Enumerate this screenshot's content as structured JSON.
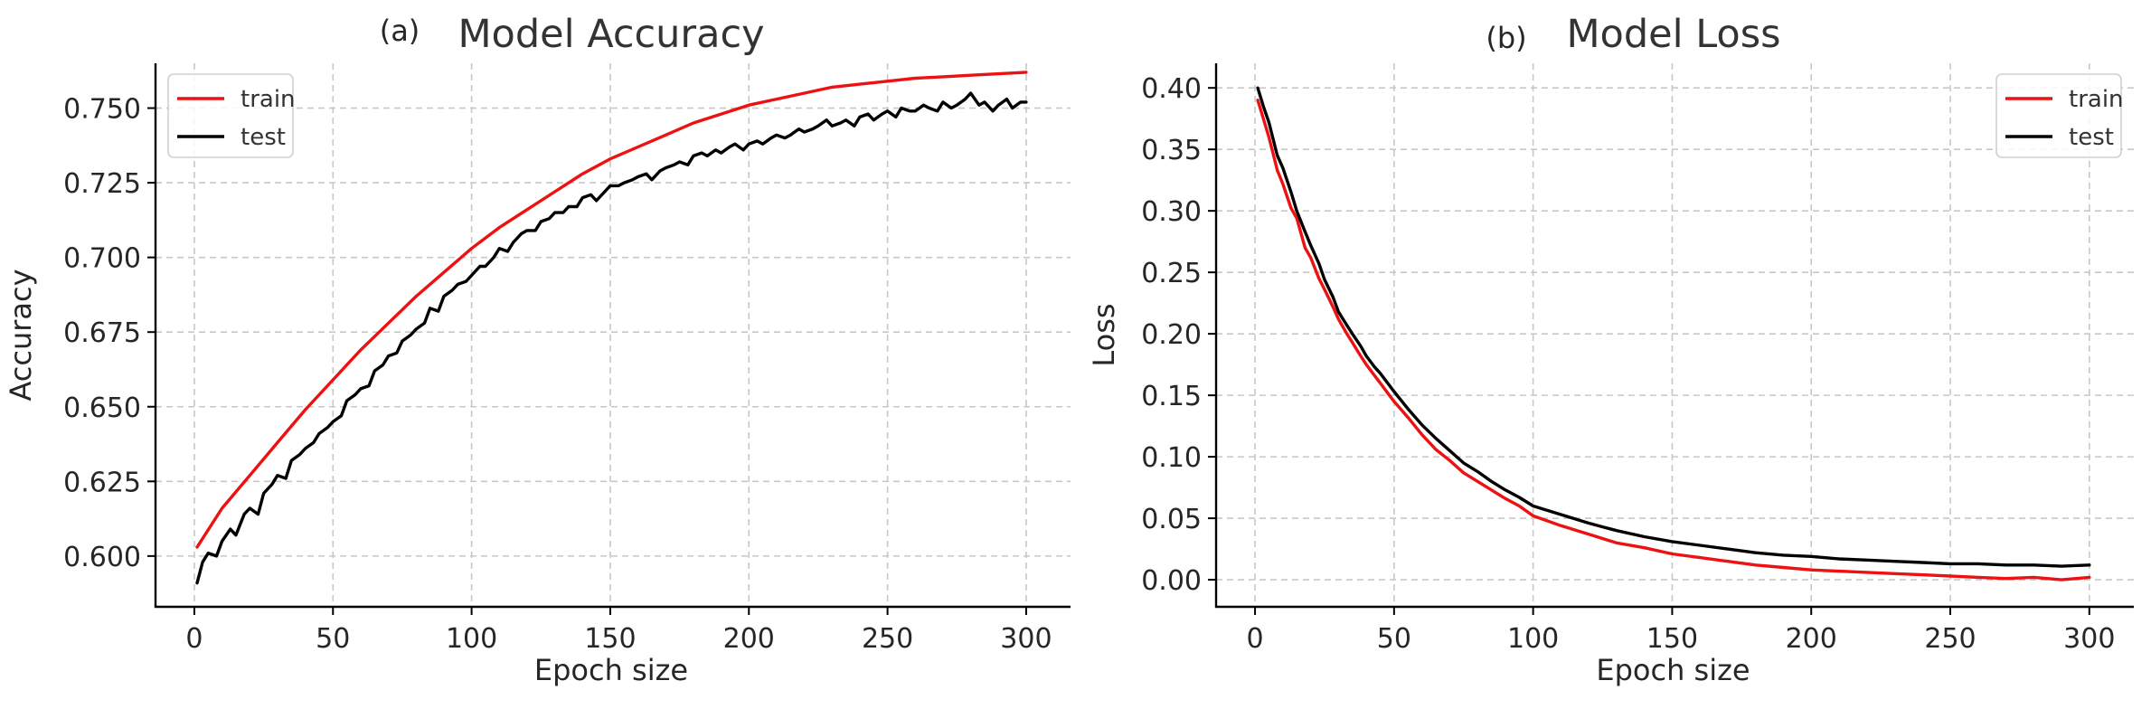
{
  "chart_data": [
    {
      "type": "line",
      "tag": "(a)",
      "title": "Model Accuracy",
      "xlabel": "Epoch size",
      "ylabel": "Accuracy",
      "xlim": [
        -14,
        316
      ],
      "ylim": [
        0.583,
        0.765
      ],
      "xticks": [
        0,
        50,
        100,
        150,
        200,
        250,
        300
      ],
      "yticks": [
        0.6,
        0.625,
        0.65,
        0.675,
        0.7,
        0.725,
        0.75
      ],
      "ytick_labels": [
        "0.600",
        "0.625",
        "0.650",
        "0.675",
        "0.700",
        "0.725",
        "0.750"
      ],
      "grid": true,
      "legend_position": "top-left",
      "series": [
        {
          "name": "train",
          "color": "#ee1111",
          "x": [
            1,
            10,
            20,
            30,
            40,
            50,
            60,
            70,
            80,
            90,
            100,
            110,
            120,
            130,
            140,
            150,
            160,
            170,
            180,
            190,
            200,
            210,
            220,
            230,
            240,
            250,
            260,
            270,
            280,
            290,
            300
          ],
          "y": [
            0.603,
            0.616,
            0.627,
            0.638,
            0.649,
            0.659,
            0.669,
            0.678,
            0.687,
            0.695,
            0.703,
            0.71,
            0.716,
            0.722,
            0.728,
            0.733,
            0.737,
            0.741,
            0.745,
            0.748,
            0.751,
            0.753,
            0.755,
            0.757,
            0.758,
            0.759,
            0.76,
            0.7605,
            0.761,
            0.7615,
            0.762
          ]
        },
        {
          "name": "test",
          "color": "#000000",
          "x": [
            1,
            3,
            5,
            8,
            10,
            13,
            15,
            18,
            20,
            23,
            25,
            28,
            30,
            33,
            35,
            38,
            40,
            43,
            45,
            48,
            50,
            53,
            55,
            58,
            60,
            63,
            65,
            68,
            70,
            73,
            75,
            78,
            80,
            83,
            85,
            88,
            90,
            93,
            95,
            98,
            100,
            103,
            105,
            108,
            110,
            113,
            115,
            118,
            120,
            123,
            125,
            128,
            130,
            133,
            135,
            138,
            140,
            143,
            145,
            148,
            150,
            153,
            155,
            158,
            160,
            163,
            165,
            168,
            170,
            173,
            175,
            178,
            180,
            183,
            185,
            188,
            190,
            193,
            195,
            198,
            200,
            203,
            205,
            208,
            210,
            213,
            215,
            218,
            220,
            223,
            225,
            228,
            230,
            233,
            235,
            238,
            240,
            243,
            245,
            248,
            250,
            253,
            255,
            258,
            260,
            263,
            265,
            268,
            270,
            273,
            275,
            278,
            280,
            283,
            285,
            288,
            290,
            293,
            295,
            298,
            300
          ],
          "y": [
            0.591,
            0.598,
            0.601,
            0.6,
            0.605,
            0.609,
            0.607,
            0.614,
            0.616,
            0.614,
            0.621,
            0.624,
            0.627,
            0.626,
            0.632,
            0.634,
            0.636,
            0.638,
            0.641,
            0.643,
            0.645,
            0.647,
            0.652,
            0.654,
            0.656,
            0.657,
            0.662,
            0.664,
            0.667,
            0.668,
            0.672,
            0.674,
            0.676,
            0.678,
            0.683,
            0.682,
            0.687,
            0.689,
            0.691,
            0.692,
            0.694,
            0.697,
            0.697,
            0.7,
            0.703,
            0.702,
            0.705,
            0.708,
            0.709,
            0.709,
            0.712,
            0.713,
            0.715,
            0.715,
            0.717,
            0.717,
            0.72,
            0.721,
            0.719,
            0.722,
            0.724,
            0.724,
            0.725,
            0.726,
            0.727,
            0.728,
            0.726,
            0.729,
            0.73,
            0.731,
            0.732,
            0.731,
            0.734,
            0.735,
            0.734,
            0.736,
            0.735,
            0.737,
            0.738,
            0.736,
            0.738,
            0.739,
            0.738,
            0.74,
            0.741,
            0.74,
            0.741,
            0.743,
            0.742,
            0.743,
            0.744,
            0.746,
            0.744,
            0.745,
            0.746,
            0.744,
            0.747,
            0.748,
            0.746,
            0.748,
            0.749,
            0.747,
            0.75,
            0.749,
            0.749,
            0.751,
            0.75,
            0.749,
            0.752,
            0.75,
            0.751,
            0.753,
            0.755,
            0.751,
            0.752,
            0.749,
            0.751,
            0.753,
            0.75,
            0.752,
            0.752
          ]
        }
      ]
    },
    {
      "type": "line",
      "tag": "(b)",
      "title": "Model Loss",
      "xlabel": "Epoch size",
      "ylabel": "Loss",
      "xlim": [
        -14,
        316
      ],
      "ylim": [
        -0.022,
        0.42
      ],
      "xticks": [
        0,
        50,
        100,
        150,
        200,
        250,
        300
      ],
      "yticks": [
        0,
        0.05,
        0.1,
        0.15,
        0.2,
        0.25,
        0.3,
        0.35,
        0.4
      ],
      "ytick_labels": [
        "0.00",
        "0.05",
        "0.10",
        "0.15",
        "0.20",
        "0.25",
        "0.30",
        "0.35",
        "0.40"
      ],
      "grid": true,
      "legend_position": "top-right",
      "series": [
        {
          "name": "train",
          "color": "#ee1111",
          "x": [
            1,
            3,
            5,
            8,
            10,
            13,
            15,
            18,
            20,
            23,
            25,
            28,
            30,
            33,
            35,
            38,
            40,
            43,
            45,
            48,
            50,
            55,
            60,
            65,
            70,
            75,
            80,
            85,
            90,
            95,
            100,
            110,
            120,
            130,
            140,
            150,
            160,
            170,
            180,
            190,
            200,
            210,
            220,
            230,
            240,
            250,
            260,
            270,
            280,
            290,
            300
          ],
          "y": [
            0.39,
            0.375,
            0.36,
            0.333,
            0.322,
            0.302,
            0.294,
            0.27,
            0.262,
            0.245,
            0.236,
            0.222,
            0.212,
            0.2,
            0.193,
            0.182,
            0.175,
            0.166,
            0.16,
            0.151,
            0.145,
            0.132,
            0.118,
            0.106,
            0.097,
            0.087,
            0.08,
            0.073,
            0.066,
            0.06,
            0.052,
            0.044,
            0.037,
            0.03,
            0.026,
            0.021,
            0.018,
            0.015,
            0.012,
            0.01,
            0.008,
            0.007,
            0.006,
            0.005,
            0.004,
            0.003,
            0.002,
            0.001,
            0.002,
            0.0,
            0.002
          ]
        },
        {
          "name": "test",
          "color": "#000000",
          "x": [
            1,
            3,
            5,
            8,
            10,
            13,
            15,
            18,
            20,
            23,
            25,
            28,
            30,
            33,
            35,
            38,
            40,
            43,
            45,
            48,
            50,
            55,
            60,
            65,
            70,
            75,
            80,
            85,
            90,
            95,
            100,
            110,
            120,
            130,
            140,
            150,
            160,
            170,
            180,
            190,
            200,
            210,
            220,
            230,
            240,
            250,
            260,
            270,
            280,
            290,
            300
          ],
          "y": [
            0.4,
            0.385,
            0.372,
            0.345,
            0.335,
            0.315,
            0.3,
            0.283,
            0.272,
            0.257,
            0.244,
            0.23,
            0.218,
            0.207,
            0.2,
            0.19,
            0.182,
            0.173,
            0.168,
            0.159,
            0.153,
            0.139,
            0.126,
            0.115,
            0.105,
            0.095,
            0.088,
            0.08,
            0.073,
            0.067,
            0.06,
            0.053,
            0.046,
            0.04,
            0.035,
            0.031,
            0.028,
            0.025,
            0.022,
            0.02,
            0.019,
            0.017,
            0.016,
            0.015,
            0.014,
            0.013,
            0.013,
            0.012,
            0.012,
            0.011,
            0.012
          ]
        }
      ]
    }
  ]
}
